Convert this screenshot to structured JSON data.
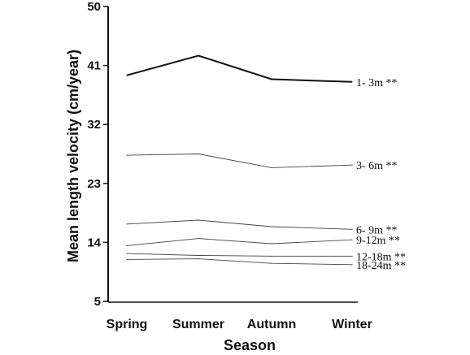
{
  "chart_data": {
    "type": "line",
    "title": "",
    "xlabel": "Season",
    "ylabel": "Mean length velocity (cm/year)",
    "categories": [
      "Spring",
      "Summer",
      "Autumn",
      "Winter"
    ],
    "yticks": [
      "5",
      "14",
      "23",
      "32",
      "41",
      "50"
    ],
    "ylim": [
      5,
      50
    ],
    "grid": false,
    "series": [
      {
        "name": "1- 3m **",
        "values": [
          39.5,
          42.5,
          38.9,
          38.5
        ],
        "weight": "heavy"
      },
      {
        "name": "3- 6m **",
        "values": [
          27.3,
          27.5,
          25.4,
          25.8
        ],
        "weight": "light"
      },
      {
        "name": "6- 9m **",
        "values": [
          16.8,
          17.4,
          16.4,
          16.0
        ],
        "weight": "light"
      },
      {
        "name": "9-12m **",
        "values": [
          13.5,
          14.6,
          13.8,
          14.4
        ],
        "weight": "light"
      },
      {
        "name": "12-18m **",
        "values": [
          12.3,
          12.0,
          11.9,
          11.9
        ],
        "weight": "light"
      },
      {
        "name": "18-24m **",
        "values": [
          11.4,
          11.5,
          10.8,
          10.6
        ],
        "weight": "light"
      }
    ]
  }
}
